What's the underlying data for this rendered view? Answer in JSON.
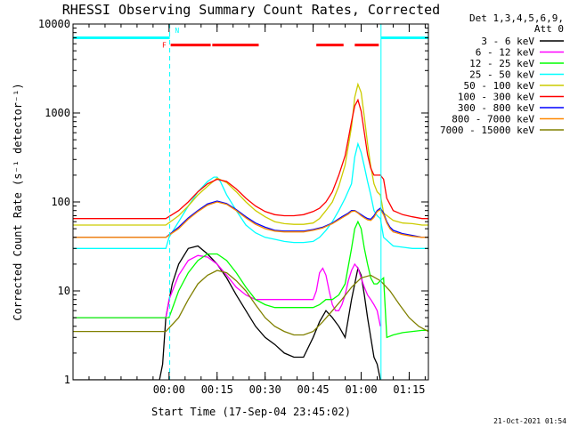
{
  "chart_data": {
    "type": "line",
    "title": "RHESSI Observing Summary Count Rates, Corrected",
    "xlabel": "Start Time (17-Sep-04 23:45:02)",
    "ylabel": "Corrected Count Rate (s⁻¹ detector⁻¹)",
    "yscale": "log",
    "ylim": [
      1,
      10000
    ],
    "xlim_minutes": [
      -15,
      96
    ],
    "x_ticks": [
      {
        "label": "00:00",
        "minutes": 15
      },
      {
        "label": "00:15",
        "minutes": 30
      },
      {
        "label": "00:30",
        "minutes": 45
      },
      {
        "label": "00:45",
        "minutes": 60
      },
      {
        "label": "01:00",
        "minutes": 75
      },
      {
        "label": "01:15",
        "minutes": 90
      }
    ],
    "y_ticks": [
      {
        "label": "1",
        "value": 1
      },
      {
        "label": "10",
        "value": 10
      },
      {
        "label": "100",
        "value": 100
      },
      {
        "label": "1000",
        "value": 1000
      },
      {
        "label": "10000",
        "value": 10000
      }
    ],
    "legend": {
      "position": "top-right",
      "header": [
        "Det 1,3,4,5,6,9,",
        "Att 0"
      ]
    },
    "series": [
      {
        "name": "3 - 6 keV",
        "color": "#000000",
        "x": [
          -15,
          12,
          13,
          14,
          16,
          18,
          21,
          24,
          27,
          30,
          33,
          36,
          39,
          42,
          45,
          48,
          51,
          54,
          57,
          60,
          62,
          64,
          66,
          68,
          70,
          72,
          73,
          74,
          75,
          76,
          77,
          78,
          79,
          80,
          81
        ],
        "y": [
          1,
          1,
          1.5,
          5,
          12,
          20,
          30,
          32,
          26,
          20,
          14,
          9,
          6,
          4,
          3,
          2.5,
          2,
          1.8,
          1.8,
          3,
          4.5,
          6,
          5,
          4,
          3,
          8,
          12,
          18,
          15,
          9,
          5,
          3,
          1.8,
          1.5,
          1
        ]
      },
      {
        "name": "6 - 12 keV",
        "color": "#ff00ff",
        "x": [
          -15,
          14,
          15,
          18,
          21,
          24,
          27,
          30,
          33,
          36,
          39,
          42,
          45,
          48,
          51,
          54,
          57,
          60,
          61,
          62,
          63,
          64,
          65,
          66,
          67,
          68,
          69,
          70,
          71,
          72,
          73,
          74,
          75,
          76,
          77,
          78,
          79,
          80,
          81
        ],
        "y": [
          5,
          5,
          8,
          15,
          22,
          25,
          24,
          20,
          15,
          11,
          9,
          8,
          8,
          8,
          8,
          8,
          8,
          8,
          10,
          16,
          18,
          15,
          10,
          7,
          6,
          6,
          7,
          9,
          13,
          17,
          20,
          18,
          14,
          11,
          9,
          8,
          7,
          6,
          4
        ]
      },
      {
        "name": "12 - 25 keV",
        "color": "#00ff00",
        "x": [
          -15,
          15,
          18,
          21,
          24,
          27,
          30,
          33,
          36,
          39,
          42,
          45,
          48,
          51,
          54,
          57,
          60,
          62,
          64,
          66,
          68,
          70,
          72,
          73,
          74,
          75,
          76,
          77,
          78,
          79,
          80,
          81,
          82,
          83,
          85,
          88,
          91,
          94,
          96
        ],
        "y": [
          5,
          5,
          10,
          16,
          22,
          26,
          26,
          22,
          16,
          11,
          8,
          7,
          6.5,
          6.5,
          6.5,
          6.5,
          6.5,
          7,
          8,
          8,
          9,
          12,
          30,
          50,
          60,
          50,
          30,
          20,
          14,
          12,
          12,
          13,
          14,
          3,
          3.2,
          3.4,
          3.5,
          3.6,
          3.6
        ]
      },
      {
        "name": "25 - 50 keV",
        "color": "#00ffff",
        "x": [
          -15,
          14,
          15,
          18,
          21,
          24,
          27,
          29,
          30,
          31,
          33,
          36,
          39,
          42,
          45,
          48,
          51,
          54,
          57,
          60,
          62,
          64,
          66,
          68,
          70,
          72,
          73,
          74,
          75,
          76,
          77,
          78,
          79,
          80,
          81,
          82,
          85,
          88,
          91,
          94,
          96
        ],
        "y": [
          30,
          30,
          40,
          60,
          90,
          130,
          170,
          190,
          190,
          170,
          120,
          80,
          55,
          45,
          40,
          38,
          36,
          35,
          35,
          36,
          40,
          48,
          60,
          80,
          110,
          160,
          320,
          450,
          360,
          250,
          170,
          120,
          80,
          70,
          65,
          40,
          32,
          31,
          30,
          30,
          30
        ]
      },
      {
        "name": "50 - 100 keV",
        "color": "#cccc00",
        "x": [
          -15,
          14,
          18,
          21,
          24,
          27,
          30,
          33,
          36,
          39,
          42,
          45,
          48,
          51,
          54,
          57,
          60,
          62,
          64,
          66,
          68,
          70,
          72,
          73,
          74,
          75,
          76,
          77,
          78,
          79,
          80,
          81,
          82,
          85,
          88,
          91,
          94,
          96
        ],
        "y": [
          55,
          55,
          70,
          90,
          120,
          150,
          185,
          165,
          130,
          100,
          80,
          68,
          60,
          57,
          56,
          56,
          58,
          65,
          80,
          100,
          150,
          260,
          700,
          1500,
          2100,
          1700,
          900,
          450,
          250,
          160,
          130,
          120,
          75,
          62,
          58,
          57,
          55,
          55
        ]
      },
      {
        "name": "100 - 300 keV",
        "color": "#ff0000",
        "x": [
          -15,
          14,
          18,
          21,
          24,
          27,
          30,
          33,
          36,
          39,
          42,
          45,
          48,
          51,
          54,
          57,
          60,
          62,
          64,
          66,
          68,
          70,
          72,
          73,
          74,
          75,
          76,
          77,
          78,
          79,
          80,
          81,
          82,
          83,
          85,
          88,
          91,
          94,
          96
        ],
        "y": [
          65,
          65,
          80,
          100,
          130,
          160,
          180,
          170,
          140,
          110,
          90,
          78,
          72,
          70,
          70,
          72,
          78,
          85,
          100,
          130,
          200,
          330,
          800,
          1200,
          1400,
          1050,
          600,
          340,
          240,
          200,
          200,
          200,
          180,
          110,
          80,
          72,
          68,
          65,
          65
        ]
      },
      {
        "name": "300 - 800 keV",
        "color": "#0000ff",
        "x": [
          -15,
          14,
          18,
          21,
          24,
          27,
          30,
          33,
          36,
          39,
          42,
          45,
          48,
          51,
          54,
          57,
          60,
          63,
          66,
          69,
          71,
          72,
          73,
          74,
          75,
          76,
          77,
          78,
          79,
          80,
          81,
          82,
          83,
          84,
          85,
          88,
          91,
          94,
          96
        ],
        "y": [
          40,
          40,
          52,
          66,
          80,
          95,
          102,
          96,
          82,
          68,
          58,
          52,
          48,
          47,
          47,
          47,
          49,
          52,
          58,
          68,
          75,
          80,
          80,
          76,
          72,
          68,
          65,
          64,
          70,
          80,
          85,
          75,
          60,
          52,
          48,
          44,
          42,
          40,
          40
        ]
      },
      {
        "name": "800 - 7000 keV",
        "color": "#ff8800",
        "x": [
          -15,
          14,
          18,
          21,
          24,
          27,
          30,
          33,
          36,
          39,
          42,
          45,
          48,
          51,
          54,
          57,
          60,
          63,
          66,
          69,
          71,
          72,
          73,
          74,
          75,
          76,
          77,
          78,
          79,
          80,
          81,
          82,
          83,
          84,
          85,
          88,
          91,
          94,
          96
        ],
        "y": [
          40,
          40,
          50,
          64,
          78,
          92,
          100,
          94,
          80,
          66,
          56,
          50,
          47,
          46,
          46,
          46,
          48,
          51,
          57,
          66,
          73,
          78,
          79,
          75,
          70,
          66,
          63,
          62,
          67,
          78,
          82,
          72,
          58,
          50,
          46,
          43,
          41,
          40,
          40
        ]
      },
      {
        "name": "7000 - 15000 keV",
        "color": "#808000",
        "x": [
          -15,
          14,
          18,
          21,
          24,
          27,
          30,
          33,
          36,
          39,
          42,
          45,
          48,
          51,
          54,
          57,
          60,
          63,
          66,
          69,
          72,
          75,
          78,
          81,
          84,
          87,
          90,
          93,
          96
        ],
        "y": [
          3.5,
          3.5,
          5,
          8,
          12,
          15,
          17,
          16,
          13,
          10,
          7,
          5,
          4,
          3.5,
          3.2,
          3.2,
          3.5,
          4.5,
          6,
          8,
          11,
          14,
          15,
          13,
          10,
          7,
          5,
          4,
          3.5
        ]
      }
    ],
    "annotations": [
      {
        "type": "vertical-line",
        "minutes": 15.2,
        "style": "dashed",
        "color": "#00ffff"
      },
      {
        "type": "vertical-line",
        "minutes": 81.2,
        "style": "solid",
        "color": "#00ffff"
      },
      {
        "type": "vertical-line",
        "minutes": 96,
        "style": "dashed",
        "color": "#00ffff"
      },
      {
        "type": "bar",
        "from": -15,
        "to": 15.2,
        "y": 7000,
        "color": "#00ffff"
      },
      {
        "type": "bar",
        "from": 81.2,
        "to": 96,
        "y": 7000,
        "color": "#00ffff"
      },
      {
        "type": "bar",
        "from": 15.5,
        "to": 28.0,
        "y": 5800,
        "color": "#ff0000"
      },
      {
        "type": "bar",
        "from": 28.5,
        "to": 43.0,
        "y": 5800,
        "color": "#ff0000"
      },
      {
        "type": "bar",
        "from": 61.0,
        "to": 69.5,
        "y": 5800,
        "color": "#ff0000"
      },
      {
        "type": "bar",
        "from": 73.0,
        "to": 80.5,
        "y": 5800,
        "color": "#ff0000"
      },
      {
        "type": "label",
        "text": "F",
        "minutes": 13.5,
        "y": 5800,
        "color": "#ff0000"
      },
      {
        "type": "label",
        "text": "N",
        "minutes": 17.5,
        "y": 8500,
        "color": "#00ffff"
      }
    ]
  },
  "footer": {
    "date": "21-Oct-2021 01:54"
  }
}
